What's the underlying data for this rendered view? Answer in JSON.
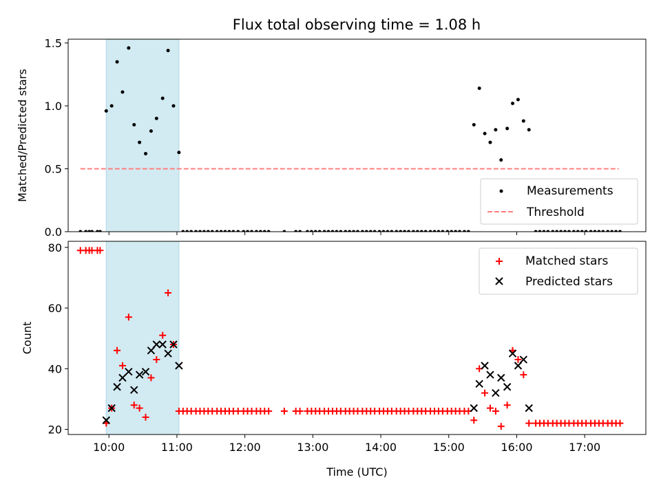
{
  "title": "Flux total observing time = 1.08 h",
  "colors": {
    "measurements": "#000000",
    "threshold": "#ff7f7f",
    "matched": "#ff0000",
    "predicted": "#000000",
    "highlight": "#add8e6"
  },
  "chart_data": [
    {
      "type": "scatter",
      "ylabel": "Matched/Predicted stars",
      "xlabel": "",
      "xlim": [
        9.4,
        17.9
      ],
      "ylim": [
        0,
        1.53
      ],
      "yticks": [
        0,
        0.5,
        1.0,
        1.5
      ],
      "ytick_labels": [
        "0.0",
        "0.5",
        "1.0",
        "1.5"
      ],
      "xticks": [
        10,
        11,
        12,
        13,
        14,
        15,
        16,
        17
      ],
      "highlight_span": [
        9.96,
        11.03
      ],
      "threshold": {
        "name": "Threshold",
        "y": 0.5,
        "x_range": [
          9.58,
          17.5
        ]
      },
      "legend": {
        "position": "lower-right",
        "entries": [
          "Measurements",
          "Threshold"
        ]
      },
      "series": [
        {
          "name": "Measurements",
          "x": [
            9.58,
            9.66,
            9.71,
            9.75,
            9.83,
            9.87,
            9.96,
            10.04,
            10.12,
            10.2,
            10.29,
            10.37,
            10.45,
            10.54,
            10.62,
            10.7,
            10.79,
            10.87,
            10.95,
            11.03,
            11.09,
            11.15,
            11.21,
            11.28,
            11.34,
            11.4,
            11.46,
            11.52,
            11.59,
            11.65,
            11.71,
            11.77,
            11.83,
            11.9,
            11.98,
            12.04,
            12.1,
            12.17,
            12.23,
            12.29,
            12.35,
            12.58,
            12.75,
            12.81,
            12.92,
            12.98,
            13.04,
            13.1,
            13.17,
            13.23,
            13.29,
            13.35,
            13.41,
            13.48,
            13.54,
            13.6,
            13.66,
            13.73,
            13.79,
            13.85,
            13.91,
            13.98,
            14.04,
            14.1,
            14.16,
            14.23,
            14.29,
            14.35,
            14.41,
            14.48,
            14.54,
            14.6,
            14.66,
            14.73,
            14.79,
            14.85,
            14.91,
            14.98,
            15.04,
            15.1,
            15.16,
            15.23,
            15.29,
            15.37,
            15.45,
            15.53,
            15.61,
            15.69,
            15.77,
            15.86,
            15.94,
            16.02,
            16.1,
            16.18,
            16.28,
            16.34,
            16.4,
            16.46,
            16.53,
            16.59,
            16.65,
            16.71,
            16.77,
            16.84,
            16.9,
            16.96,
            17.02,
            17.09,
            17.15,
            17.21,
            17.27,
            17.34,
            17.4,
            17.46,
            17.52
          ],
          "y": [
            0,
            0,
            0,
            0,
            0,
            0,
            0.96,
            1.0,
            1.35,
            1.11,
            1.46,
            0.85,
            0.71,
            0.62,
            0.8,
            0.9,
            1.06,
            1.44,
            1.0,
            0.63,
            0,
            0,
            0,
            0,
            0,
            0,
            0,
            0,
            0,
            0,
            0,
            0,
            0,
            0,
            0,
            0,
            0,
            0,
            0,
            0,
            0,
            0,
            0,
            0,
            0,
            0,
            0,
            0,
            0,
            0,
            0,
            0,
            0,
            0,
            0,
            0,
            0,
            0,
            0,
            0,
            0,
            0,
            0,
            0,
            0,
            0,
            0,
            0,
            0,
            0,
            0,
            0,
            0,
            0,
            0,
            0,
            0,
            0,
            0,
            0,
            0,
            0,
            0,
            0.85,
            1.14,
            0.78,
            0.71,
            0.81,
            0.57,
            0.82,
            1.02,
            1.05,
            0.88,
            0.81,
            0,
            0,
            0,
            0,
            0,
            0,
            0,
            0,
            0,
            0,
            0,
            0,
            0,
            0,
            0,
            0,
            0,
            0,
            0,
            0,
            0
          ]
        }
      ]
    },
    {
      "type": "scatter",
      "ylabel": "Count",
      "xlabel": "Time (UTC)",
      "xlim": [
        9.4,
        17.9
      ],
      "ylim": [
        18.3,
        82
      ],
      "yticks": [
        20,
        40,
        60,
        80
      ],
      "ytick_labels": [
        "20",
        "40",
        "60",
        "80"
      ],
      "xticks": [
        10,
        11,
        12,
        13,
        14,
        15,
        16,
        17
      ],
      "xtick_labels": [
        "10:00",
        "11:00",
        "12:00",
        "13:00",
        "14:00",
        "15:00",
        "16:00",
        "17:00"
      ],
      "highlight_span": [
        9.96,
        11.03
      ],
      "legend": {
        "position": "top-right",
        "entries": [
          "Matched stars",
          "Predicted stars"
        ]
      },
      "series": [
        {
          "name": "Matched stars",
          "marker": "plus",
          "x": [
            9.58,
            9.66,
            9.71,
            9.75,
            9.83,
            9.87,
            9.96,
            10.04,
            10.12,
            10.2,
            10.29,
            10.37,
            10.45,
            10.54,
            10.62,
            10.7,
            10.79,
            10.87,
            10.95,
            11.03,
            11.09,
            11.15,
            11.21,
            11.28,
            11.34,
            11.4,
            11.46,
            11.52,
            11.59,
            11.65,
            11.71,
            11.77,
            11.83,
            11.9,
            11.98,
            12.04,
            12.1,
            12.17,
            12.23,
            12.29,
            12.35,
            12.58,
            12.75,
            12.81,
            12.92,
            12.98,
            13.04,
            13.1,
            13.17,
            13.23,
            13.29,
            13.35,
            13.41,
            13.48,
            13.54,
            13.6,
            13.66,
            13.73,
            13.79,
            13.85,
            13.91,
            13.98,
            14.04,
            14.1,
            14.16,
            14.23,
            14.29,
            14.35,
            14.41,
            14.48,
            14.54,
            14.6,
            14.66,
            14.73,
            14.79,
            14.85,
            14.91,
            14.98,
            15.04,
            15.1,
            15.16,
            15.23,
            15.29,
            15.37,
            15.45,
            15.53,
            15.61,
            15.69,
            15.77,
            15.86,
            15.94,
            16.02,
            16.1,
            16.18,
            16.28,
            16.34,
            16.4,
            16.46,
            16.53,
            16.59,
            16.65,
            16.71,
            16.77,
            16.84,
            16.9,
            16.96,
            17.02,
            17.09,
            17.15,
            17.21,
            17.27,
            17.34,
            17.4,
            17.46,
            17.52
          ],
          "y": [
            79,
            79,
            79,
            79,
            79,
            79,
            22,
            27,
            46,
            41,
            57,
            28,
            27,
            24,
            37,
            43,
            51,
            65,
            48,
            26,
            26,
            26,
            26,
            26,
            26,
            26,
            26,
            26,
            26,
            26,
            26,
            26,
            26,
            26,
            26,
            26,
            26,
            26,
            26,
            26,
            26,
            26,
            26,
            26,
            26,
            26,
            26,
            26,
            26,
            26,
            26,
            26,
            26,
            26,
            26,
            26,
            26,
            26,
            26,
            26,
            26,
            26,
            26,
            26,
            26,
            26,
            26,
            26,
            26,
            26,
            26,
            26,
            26,
            26,
            26,
            26,
            26,
            26,
            26,
            26,
            26,
            26,
            26,
            23,
            40,
            32,
            27,
            26,
            21,
            28,
            46,
            43,
            38,
            22,
            22,
            22,
            22,
            22,
            22,
            22,
            22,
            22,
            22,
            22,
            22,
            22,
            22,
            22,
            22,
            22,
            22,
            22,
            22,
            22,
            22
          ]
        },
        {
          "name": "Predicted stars",
          "marker": "x",
          "x": [
            9.96,
            10.04,
            10.12,
            10.2,
            10.29,
            10.37,
            10.45,
            10.54,
            10.62,
            10.7,
            10.79,
            10.87,
            10.95,
            11.03,
            15.37,
            15.45,
            15.53,
            15.61,
            15.69,
            15.77,
            15.86,
            15.94,
            16.02,
            16.1,
            16.18
          ],
          "y": [
            23,
            27,
            34,
            37,
            39,
            33,
            38,
            39,
            46,
            48,
            48,
            45,
            48,
            41,
            27,
            35,
            41,
            38,
            32,
            37,
            34,
            45,
            41,
            43,
            27
          ]
        }
      ]
    }
  ]
}
